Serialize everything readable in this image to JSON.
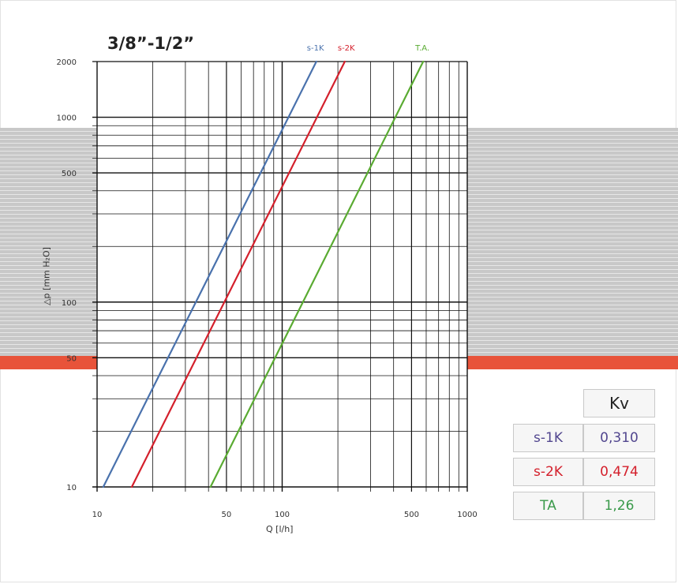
{
  "chart_data": {
    "type": "line",
    "title": "3/8”-1/2”",
    "xlabel": "Q [l/h]",
    "ylabel": "△p [mm H₂O]",
    "x_scale": "log",
    "y_scale": "log",
    "xlim": [
      10,
      1000
    ],
    "ylim": [
      10,
      2000
    ],
    "x_ticks": [
      10,
      50,
      100,
      500,
      1000
    ],
    "y_ticks": [
      10,
      50,
      100,
      500,
      1000,
      2000
    ],
    "grid": true,
    "series": [
      {
        "name": "s-1K",
        "color": "#4a72ad",
        "kv": 0.31,
        "points": [
          [
            10.8,
            10
          ],
          [
            153,
            2000
          ]
        ]
      },
      {
        "name": "s-2K",
        "color": "#d4202c",
        "kv": 0.474,
        "points": [
          [
            15.4,
            10
          ],
          [
            218,
            2000
          ]
        ]
      },
      {
        "name": "T.A.",
        "color": "#5aab32",
        "kv": 1.26,
        "points": [
          [
            41,
            10
          ],
          [
            578,
            2000
          ]
        ]
      }
    ]
  },
  "kv_table": {
    "header": "Kv",
    "rows": [
      {
        "name": "s-1K",
        "value": "0,310",
        "color": "#52478f"
      },
      {
        "name": "s-2K",
        "value": "0,474",
        "color": "#d4202c"
      },
      {
        "name": "TA",
        "value": "1,26",
        "color": "#3a9a4a"
      }
    ]
  }
}
